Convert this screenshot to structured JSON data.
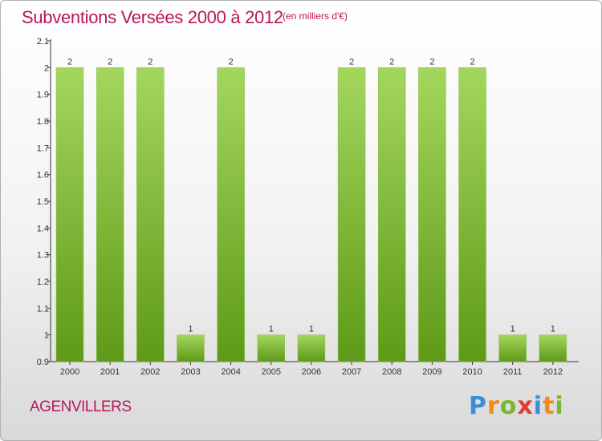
{
  "header": {
    "title": "Subventions Versées 2000 à 2012",
    "unit_note": "(en milliers d'€)"
  },
  "footer": {
    "location": "AGENVILLERS",
    "logo_text": "Proxiti"
  },
  "colors": {
    "accent": "#b5175a",
    "bar_light": "#9ed05a",
    "bar_dark": "#5e9a18"
  },
  "chart_data": {
    "type": "bar",
    "title": "Subventions Versées 2000 à 2012",
    "subtitle": "(en milliers d'€)",
    "xlabel": "",
    "ylabel": "",
    "categories": [
      "2000",
      "2001",
      "2002",
      "2003",
      "2004",
      "2005",
      "2006",
      "2007",
      "2008",
      "2009",
      "2010",
      "2011",
      "2012"
    ],
    "values": [
      2,
      2,
      2,
      1,
      2,
      1,
      1,
      2,
      2,
      2,
      2,
      1,
      1
    ],
    "ylim": [
      0.9,
      2.1
    ],
    "yticks": [
      "0.9",
      "1",
      "1.1",
      "1.2",
      "1.3",
      "1.4",
      "1.5",
      "1.6",
      "1.7",
      "1.8",
      "1.9",
      "2",
      "2.1"
    ],
    "grid": false,
    "data_labels": true
  }
}
